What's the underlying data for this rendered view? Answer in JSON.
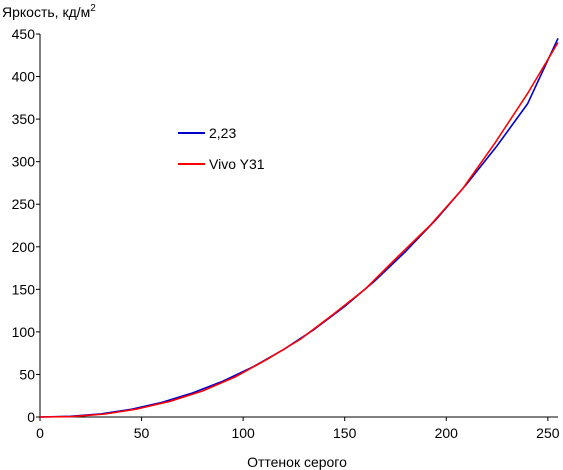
{
  "chart_data": {
    "type": "line",
    "title": "",
    "ylabel": "Яркость, кд/м",
    "ylabel_superscript": "2",
    "xlabel": "Оттенок серого",
    "xlim": [
      0,
      255
    ],
    "ylim": [
      0,
      450
    ],
    "xticks": [
      0,
      50,
      100,
      150,
      200,
      250
    ],
    "yticks": [
      0,
      50,
      100,
      150,
      200,
      250,
      300,
      350,
      400,
      450
    ],
    "grid": false,
    "legend_position": "center-left",
    "series": [
      {
        "name": "2,23",
        "color": "#0000cc",
        "x": [
          0,
          15,
          30,
          45,
          60,
          75,
          90,
          105,
          120,
          135,
          150,
          165,
          180,
          195,
          210,
          225,
          240,
          255
        ],
        "y": [
          0,
          0.8,
          3.7,
          9.1,
          17.2,
          28.2,
          42.1,
          59.1,
          79.4,
          102.9,
          129.9,
          160.4,
          194.4,
          232.1,
          273.6,
          318.8,
          367.9,
          445
        ]
      },
      {
        "name": "Vivo Y31",
        "color": "#ff0000",
        "x": [
          0,
          16,
          32,
          48,
          64,
          80,
          96,
          112,
          128,
          144,
          160,
          176,
          192,
          208,
          224,
          240,
          255
        ],
        "y": [
          0,
          0.5,
          3.5,
          9.5,
          18.5,
          30.5,
          47,
          68,
          91,
          120,
          150,
          188,
          225,
          268,
          322,
          380,
          440
        ]
      }
    ]
  }
}
